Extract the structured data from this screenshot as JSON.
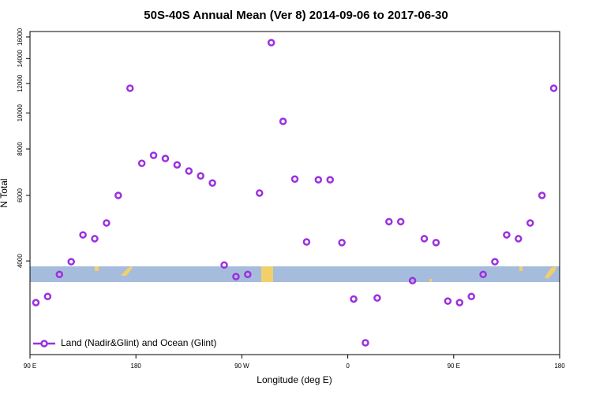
{
  "chart_data": {
    "type": "scatter",
    "title": "50S-40S Annual Mean (Ver 8)   2014-09-06 to 2017-06-30",
    "xlabel": "Longitude (deg E)",
    "ylabel": "N Total",
    "x": [
      95,
      105,
      115,
      125,
      135,
      145,
      155,
      165,
      175,
      185,
      195,
      205,
      215,
      225,
      235,
      245,
      255,
      265,
      275,
      285,
      295,
      305,
      315,
      325,
      335,
      345,
      355,
      365,
      375,
      385,
      395,
      405,
      415,
      425,
      435,
      445,
      455,
      465,
      475,
      485,
      495,
      505,
      515,
      525,
      535
    ],
    "series": [
      {
        "name": "Land (Nadir&Glint) and Ocean (Glint)",
        "color": "#9b30e0",
        "values": [
          3090,
          3210,
          3680,
          3980,
          4700,
          4590,
          5060,
          6000,
          11650,
          7320,
          7690,
          7540,
          7250,
          6980,
          6770,
          6480,
          3900,
          3630,
          3680,
          6090,
          15450,
          9490,
          6640,
          4500,
          6610,
          6610,
          4480,
          3160,
          2410,
          3180,
          5100,
          5100,
          3540,
          4590,
          4480,
          3120,
          3090,
          3210,
          3680,
          3980,
          4700,
          4590,
          5060,
          6000,
          11650
        ]
      }
    ],
    "xlim": [
      90,
      540
    ],
    "xticks": [
      {
        "value": 90,
        "label": "90 E"
      },
      {
        "value": 180,
        "label": "180"
      },
      {
        "value": 270,
        "label": "90 W"
      },
      {
        "value": 360,
        "label": "0"
      },
      {
        "value": 450,
        "label": "90 E"
      },
      {
        "value": 540,
        "label": "180"
      }
    ],
    "ylim": [
      2240,
      16550
    ],
    "yticks": [
      4000,
      6000,
      8000,
      10000,
      12000,
      14000,
      16000
    ],
    "log_y": true,
    "legend": "lower left"
  }
}
